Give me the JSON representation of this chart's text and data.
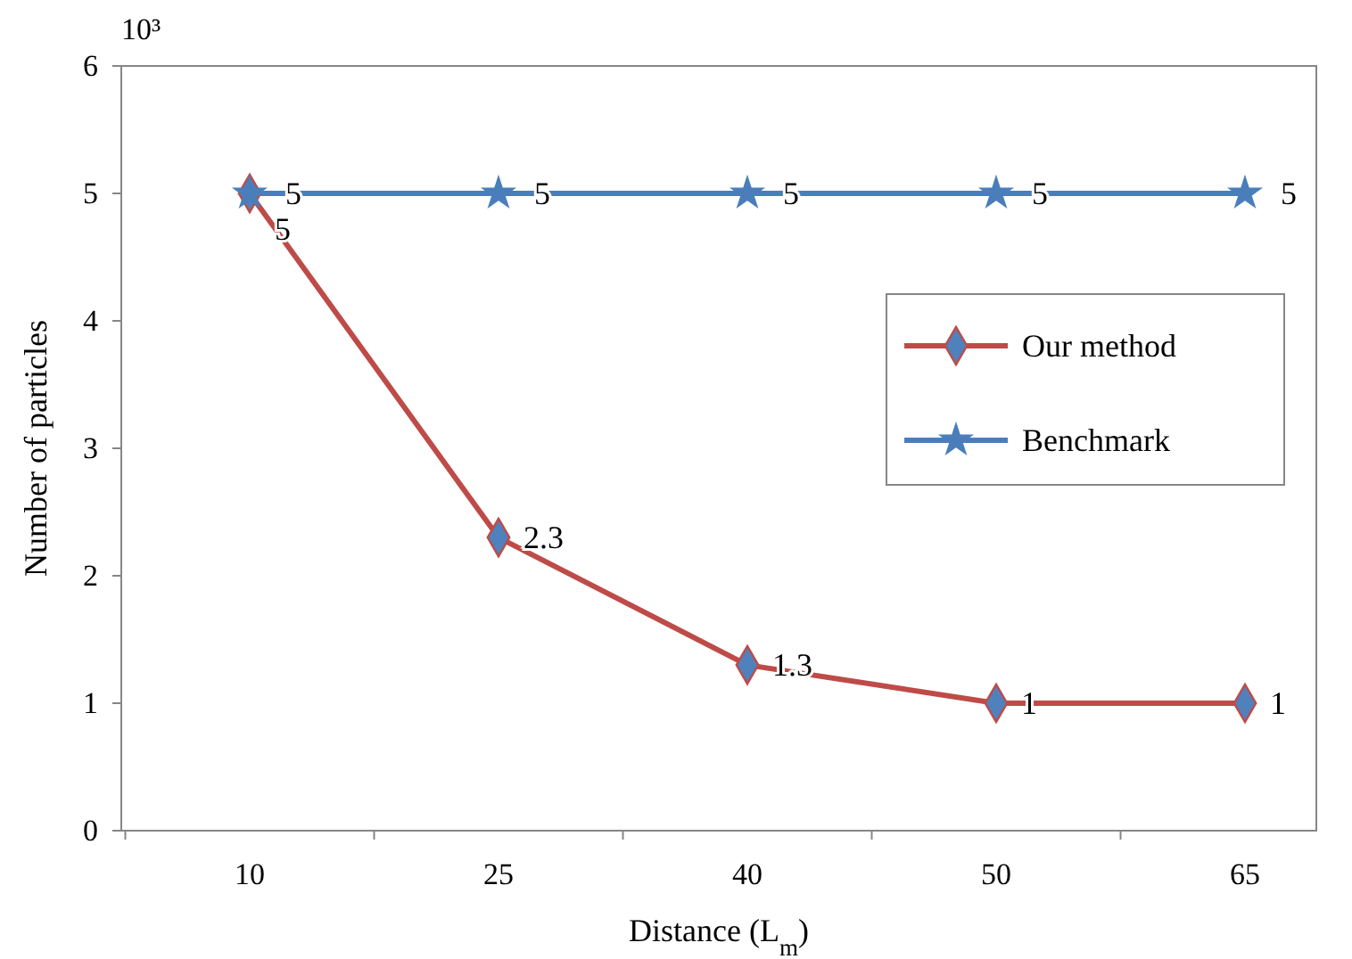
{
  "chart_data": {
    "type": "line",
    "xlabel": "Distance (L$_{m}$)",
    "ylabel": "Number of particles",
    "annotations": [
      "10³"
    ],
    "categories": [
      "10",
      "25",
      "40",
      "50",
      "65"
    ],
    "series": [
      {
        "name": "Our method",
        "color": "#be4b48",
        "values": [
          5,
          2.3,
          1.3,
          1,
          1
        ],
        "marker": "diamond"
      },
      {
        "name": "Benchmark",
        "color": "#4a7ebb",
        "values": [
          5,
          5,
          5,
          5,
          5
        ],
        "marker": "star"
      }
    ],
    "ylim": [
      0,
      6
    ],
    "yticks": [
      0,
      1,
      2,
      3,
      4,
      5,
      6
    ],
    "grid": false,
    "legend": "right",
    "data_labels": true,
    "line_style": "solid"
  }
}
